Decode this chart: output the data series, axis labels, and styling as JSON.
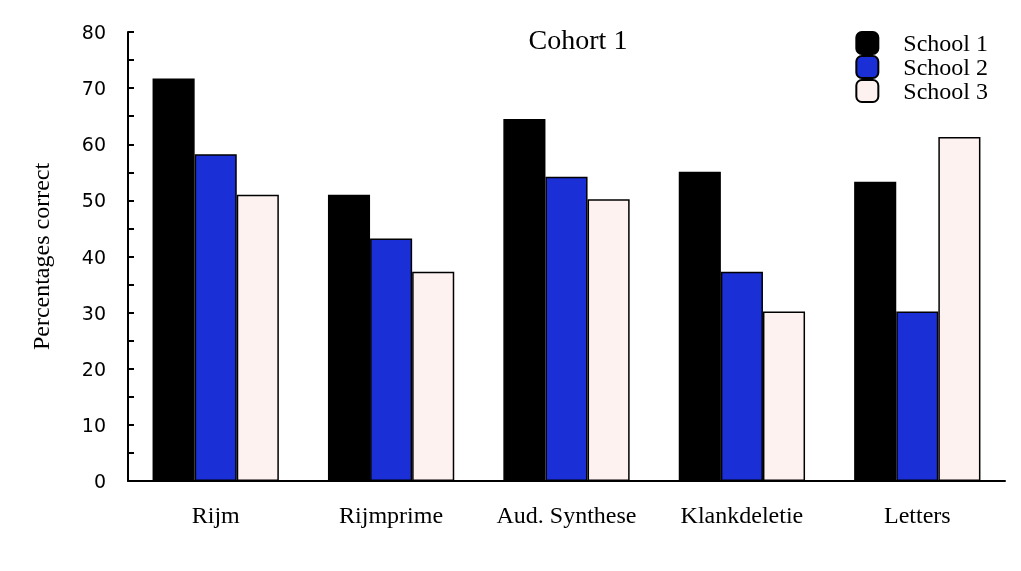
{
  "chart_data": {
    "type": "bar",
    "title": "Cohort 1",
    "ylabel": "Percentages correct",
    "categories": [
      "Rijm",
      "Rijmprime",
      "Aud. Synthese",
      "Klankdeletie",
      "Letters"
    ],
    "series": [
      {
        "name": "School 1",
        "color": "#000000",
        "values": [
          71.7,
          51,
          64.5,
          55.1,
          53.3
        ]
      },
      {
        "name": "School 2",
        "color": "#1a2fd6",
        "values": [
          58.2,
          43.2,
          54.2,
          37.3,
          30.2
        ]
      },
      {
        "name": "School 3",
        "color": "#fdf2f0",
        "values": [
          51,
          37.3,
          50.2,
          30.2,
          61.3
        ]
      }
    ],
    "ylim": [
      0,
      80
    ],
    "yticks": [
      0,
      {
        "value": 5,
        "label": null
      },
      10,
      {
        "value": 15,
        "label": null
      },
      20,
      {
        "value": 25,
        "label": null
      },
      30,
      {
        "value": 35,
        "label": null
      },
      40,
      {
        "value": 45,
        "label": null
      },
      50,
      {
        "value": 55,
        "label": null
      },
      60,
      {
        "value": 65,
        "label": null
      },
      70,
      {
        "value": 75,
        "label": null
      },
      80
    ],
    "grid": false,
    "legend": "top right"
  }
}
